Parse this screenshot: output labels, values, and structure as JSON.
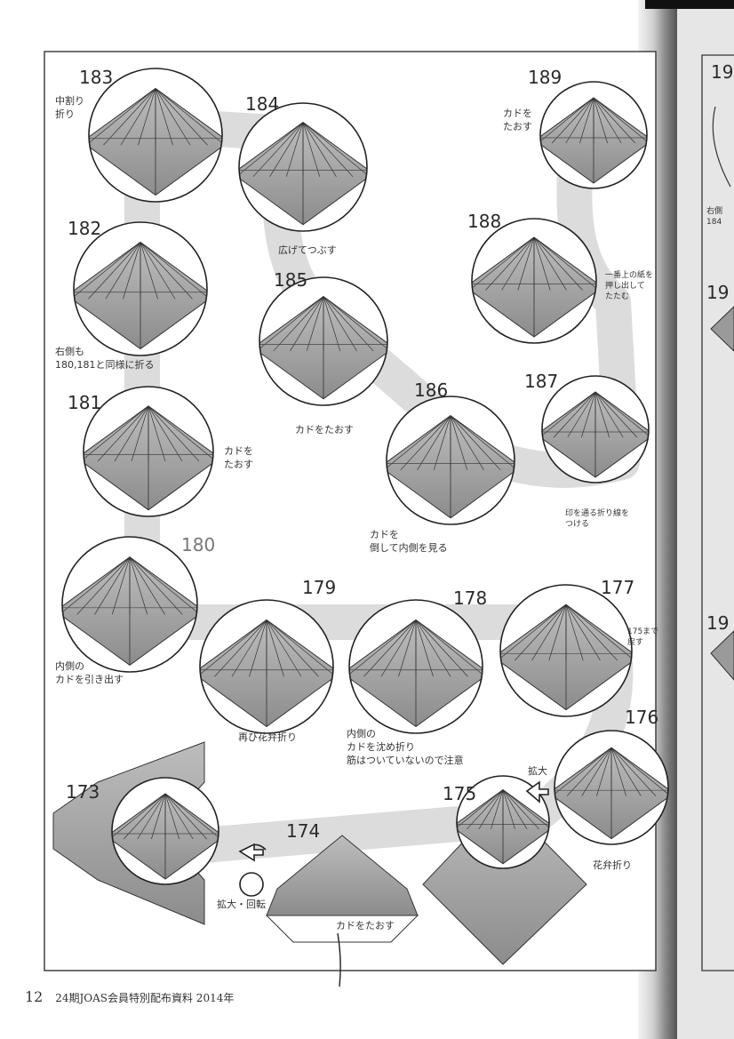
{
  "footer": {
    "page_number": "12",
    "publication": "24期JOAS会員特別配布資料 2014年"
  },
  "steps": [
    {
      "num": "183",
      "text": "中割り\n折り"
    },
    {
      "num": "184",
      "text": "広げてつぶす"
    },
    {
      "num": "185",
      "text": "カドをたおす"
    },
    {
      "num": "182",
      "text": "右側も\n180,181と同様に折る"
    },
    {
      "num": "181",
      "text": "カドを\nたおす"
    },
    {
      "num": "180",
      "text": "内側の\nカドを引き出す"
    },
    {
      "num": "179",
      "text": "再び花弁折り"
    },
    {
      "num": "178",
      "text": "内側の\nカドを沈め折り\n筋はついていないので注意"
    },
    {
      "num": "177",
      "text": "175まで\n戻す"
    },
    {
      "num": "176",
      "text": "花弁折り"
    },
    {
      "num": "175",
      "text": "拡大"
    },
    {
      "num": "174",
      "text": "カドをたおす"
    },
    {
      "num": "173",
      "text": "拡大・回転"
    },
    {
      "num": "186",
      "text": "カドを\n倒して内側を見る"
    },
    {
      "num": "187",
      "text": "印を通る折り線を\nつける"
    },
    {
      "num": "188",
      "text": "一番上の紙を\n押し出して\nたたむ"
    },
    {
      "num": "189",
      "text": "カドを\nたおす"
    }
  ],
  "right_page": {
    "nums": [
      "19",
      "19",
      "19"
    ],
    "text": "右側\n184"
  }
}
